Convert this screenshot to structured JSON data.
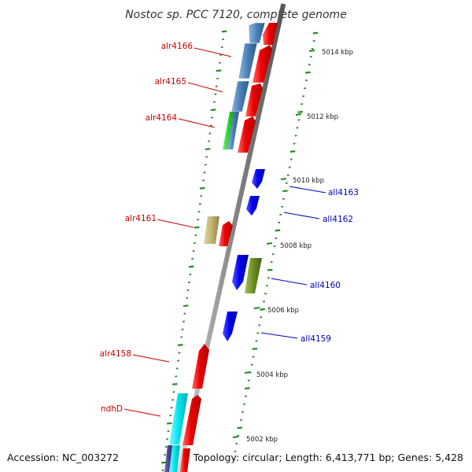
{
  "title": "Nostoc sp. PCC 7120, complete genome",
  "footer": {
    "accession": "Accession: NC_003272",
    "topology": "Topology: circular; Length: 6,413,771 bp; Genes: 5,428"
  },
  "colors": {
    "forward_label": "#cc0000",
    "reverse_label": "#0000bb",
    "red_gene": "#ee0000",
    "blue_gene": "#0000ee",
    "steel_gene": "#4a7fb5",
    "green_gene": "#22cc22",
    "khaki_gene": "#c2b46e",
    "olive_gene": "#6b8e23",
    "cyan_gene": "#00e5ee",
    "indigo_gene": "#483d8b",
    "tick": "#228b22",
    "backbone": "#888888"
  },
  "scale": {
    "ticks": [
      {
        "label": "5014 kbp"
      },
      {
        "label": "5012 kbp"
      },
      {
        "label": "5010 kbp"
      },
      {
        "label": "5008 kbp"
      },
      {
        "label": "5006 kbp"
      },
      {
        "label": "5004 kbp"
      },
      {
        "label": "5002 kbp"
      }
    ]
  },
  "gene_labels": {
    "forward": [
      {
        "text": "alr4166"
      },
      {
        "text": "alr4165"
      },
      {
        "text": "alr4164"
      },
      {
        "text": "alr4161"
      },
      {
        "text": "alr4158"
      },
      {
        "text": "ndhD"
      }
    ],
    "reverse": [
      {
        "text": "all4163"
      },
      {
        "text": "all4162"
      },
      {
        "text": "all4160"
      },
      {
        "text": "all4159"
      }
    ]
  }
}
